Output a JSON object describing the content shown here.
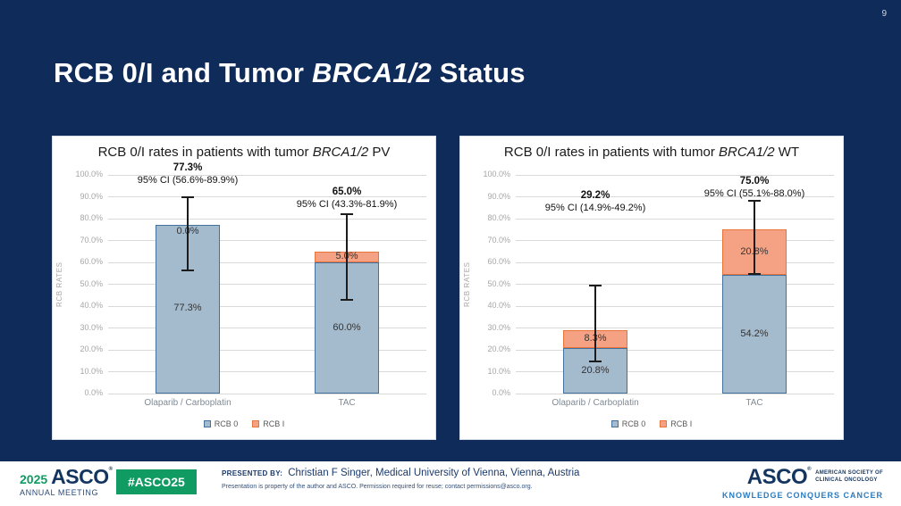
{
  "slide": {
    "number": "9",
    "title": {
      "prefix": "RCB 0/I and Tumor ",
      "italic": "BRCA1/2",
      "suffix": " Status"
    }
  },
  "colors": {
    "background": "#0e2b5a",
    "rcb0_fill": "#a4bacd",
    "rcb0_border": "#41719c",
    "rcb1_fill": "#f5a284",
    "rcb1_border": "#e8743c",
    "asco_green": "#0f9b62",
    "navy_text": "#1b3a6b",
    "tagline_blue": "#2b7bbf"
  },
  "chart_data": [
    {
      "type": "bar",
      "stacked": true,
      "title": {
        "prefix": "RCB 0/I rates in patients with tumor ",
        "italic": "BRCA1/2",
        "suffix": " PV"
      },
      "ylabel": "RCB RATES",
      "ylim": [
        0,
        100
      ],
      "ytick_step": 10,
      "grid": true,
      "legend_position": "bottom",
      "categories": [
        "Olaparib / Carboplatin",
        "TAC"
      ],
      "series": [
        {
          "name": "RCB 0",
          "values": [
            77.3,
            60.0
          ],
          "labels": [
            "77.3%",
            "60.0%"
          ],
          "fill": "#a4bacd",
          "border": "#41719c"
        },
        {
          "name": "RCB I",
          "values": [
            0.0,
            5.0
          ],
          "labels": [
            "0.0%",
            "5.0%"
          ],
          "fill": "#f5a284",
          "border": "#e8743c"
        }
      ],
      "error_bars": [
        {
          "low": 56.6,
          "high": 89.9
        },
        {
          "low": 43.3,
          "high": 81.9
        }
      ],
      "annotations": [
        {
          "value": "77.3%",
          "ci": "95% CI (56.6%-89.9%)",
          "center_pct": 102.5
        },
        {
          "value": "65.0%",
          "ci": "95% CI (43.3%-81.9%)",
          "center_pct": 91.5
        }
      ]
    },
    {
      "type": "bar",
      "stacked": true,
      "title": {
        "prefix": "RCB 0/I rates in patients with tumor ",
        "italic": "BRCA1/2",
        "suffix": " WT"
      },
      "ylabel": "RCB RATES",
      "ylim": [
        0,
        100
      ],
      "ytick_step": 10,
      "grid": true,
      "legend_position": "bottom",
      "categories": [
        "Olaparib / Carboplatin",
        "TAC"
      ],
      "series": [
        {
          "name": "RCB 0",
          "values": [
            20.8,
            54.2
          ],
          "labels": [
            "20.8%",
            "54.2%"
          ],
          "fill": "#a4bacd",
          "border": "#41719c"
        },
        {
          "name": "RCB I",
          "values": [
            8.3,
            20.8
          ],
          "labels": [
            "8.3%",
            "20.8%"
          ],
          "fill": "#f5a284",
          "border": "#e8743c"
        }
      ],
      "error_bars": [
        {
          "low": 14.9,
          "high": 49.2
        },
        {
          "low": 55.1,
          "high": 88.0
        }
      ],
      "annotations": [
        {
          "value": "29.2%",
          "ci": "95% CI (14.9%-49.2%)",
          "center_pct": 90
        },
        {
          "value": "75.0%",
          "ci": "95% CI (55.1%-88.0%)",
          "center_pct": 96.5
        }
      ]
    }
  ],
  "footer": {
    "meeting_year": "2025",
    "meeting_name": "ASCO",
    "registered_mark": "®",
    "meeting_sub": "ANNUAL MEETING",
    "hashtag": "#ASCO25",
    "presented_by_label": "PRESENTED BY:",
    "presenter": "Christian F Singer, Medical University of Vienna, Vienna, Austria",
    "disclaimer": "Presentation is property of the author and ASCO. Permission required for reuse; contact permissions@asco.org.",
    "asco_logo_text": "ASCO",
    "asco_logo_sub1": "AMERICAN SOCIETY OF",
    "asco_logo_sub2": "CLINICAL ONCOLOGY",
    "asco_tagline": "KNOWLEDGE CONQUERS CANCER"
  }
}
